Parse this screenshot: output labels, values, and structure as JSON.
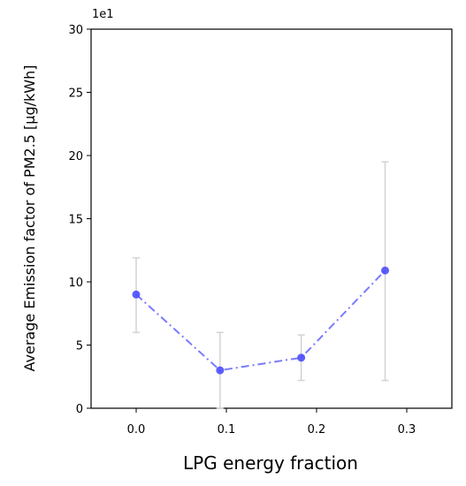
{
  "chart_data": {
    "type": "line",
    "title": "",
    "xlabel": "LPG energy fraction",
    "ylabel": "Average Emission factor of PM2.5 [μg/kWh]",
    "y_offset_label": "1e1",
    "xlim": [
      -0.05,
      0.35
    ],
    "ylim": [
      0,
      3.0
    ],
    "x_ticks": [
      "0.0",
      "0.1",
      "0.2",
      "0.3"
    ],
    "y_ticks": [
      "0",
      "5",
      "10",
      "15",
      "20",
      "25",
      "30"
    ],
    "y_tick_values": [
      0.0,
      0.5,
      1.0,
      1.5,
      2.0,
      2.5,
      3.0
    ],
    "x_tick_values": [
      0.0,
      0.1,
      0.2,
      0.3
    ],
    "grid": false,
    "series": [
      {
        "x": [
          0.0,
          0.093,
          0.183,
          0.276
        ],
        "y": [
          0.9,
          0.3,
          0.4,
          1.09
        ],
        "error_low": [
          0.6,
          0.0,
          0.22,
          0.22
        ],
        "error_high": [
          1.19,
          0.6,
          0.58,
          1.95
        ],
        "color": "#4d4dff",
        "line_style": "dash-dot",
        "marker": "circle"
      }
    ],
    "errorbar_color": "#d3d3d3"
  }
}
